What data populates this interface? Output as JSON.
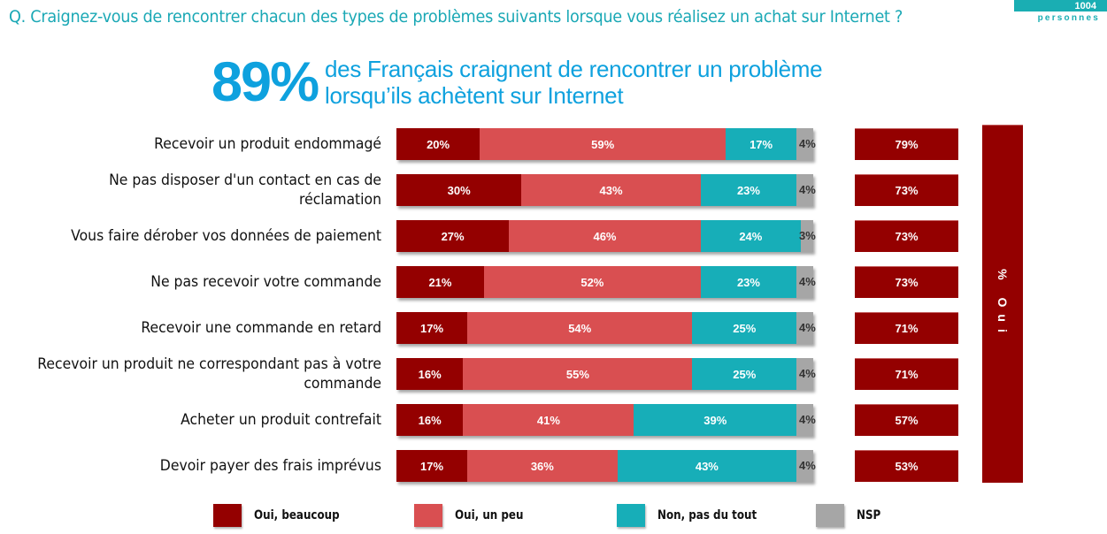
{
  "question": "Q. Craignez-vous de rencontrer chacun des types de problèmes suivants lorsque vous réalisez un achat sur Internet ?",
  "sample": {
    "count": "1004",
    "label": "personnes"
  },
  "headline": {
    "value": "89%",
    "line1": "des Français craignent de rencontrer un problème",
    "line2": "lorsqu’ils achètent sur Internet"
  },
  "total_header": "% Oui",
  "colors": {
    "oui_beaucoup": "#940000",
    "oui_un_peu": "#d94f51",
    "non_pas_du_tout": "#17aeb8",
    "nsp": "#a6a6a6",
    "accent": "#0ea1de",
    "question": "#1aa8b5"
  },
  "chart_data": {
    "type": "bar",
    "orientation": "horizontal-stacked-100",
    "title": "Craignez-vous de rencontrer chacun des types de problèmes suivants lorsque vous réalisez un achat sur Internet ?",
    "categories": [
      "Recevoir un produit endommagé",
      "Ne pas disposer d'un contact en cas de réclamation",
      "Vous faire dérober vos données de paiement",
      "Ne pas recevoir votre commande",
      "Recevoir une commande en retard",
      "Recevoir un produit ne correspondant pas à votre commande",
      "Acheter un produit contrefait",
      "Devoir payer des frais imprévus"
    ],
    "series": [
      {
        "name": "Oui, beaucoup",
        "values": [
          20,
          30,
          27,
          21,
          17,
          16,
          16,
          17
        ]
      },
      {
        "name": "Oui, un peu",
        "values": [
          59,
          43,
          46,
          52,
          54,
          55,
          41,
          36
        ]
      },
      {
        "name": "Non, pas du tout",
        "values": [
          17,
          23,
          24,
          23,
          25,
          25,
          39,
          43
        ]
      },
      {
        "name": "NSP",
        "values": [
          4,
          4,
          3,
          4,
          4,
          4,
          4,
          4
        ]
      }
    ],
    "totals_label": "% Oui",
    "totals": [
      79,
      73,
      73,
      73,
      71,
      71,
      57,
      53
    ],
    "unit": "%",
    "xlim": [
      0,
      100
    ],
    "legend": [
      "Oui, beaucoup",
      "Oui, un peu",
      "Non, pas du tout",
      "NSP"
    ],
    "legend_position": "bottom",
    "grid": false
  }
}
